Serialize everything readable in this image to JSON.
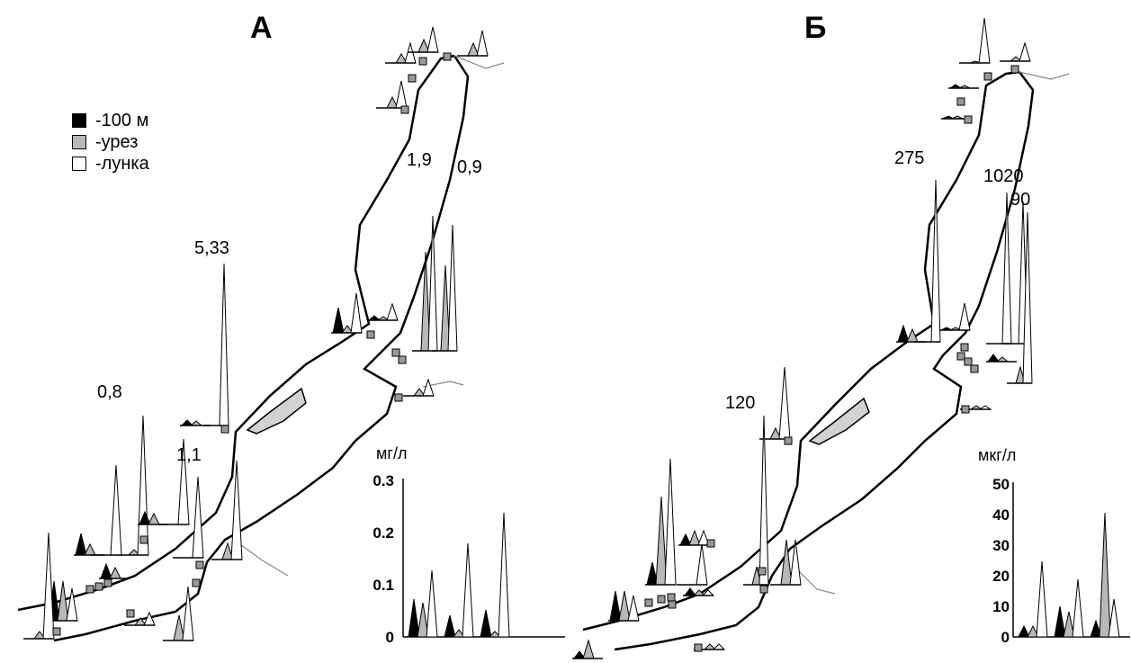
{
  "legend": {
    "items": [
      {
        "label": "-100 м",
        "color": "#000000"
      },
      {
        "label": "-урез",
        "color": "#b8b8b8"
      },
      {
        "label": "-лунка",
        "color": "#ffffff"
      }
    ]
  },
  "panels": [
    {
      "title": "А",
      "annotations": [
        "5,33",
        "0,8",
        "1,1",
        "1,9",
        "0,9"
      ],
      "inset": {
        "unit": "мг/л",
        "ticks": [
          "0",
          "0.1",
          "0.2",
          "0.3"
        ],
        "ymax": 0.3
      }
    },
    {
      "title": "Б",
      "annotations": [
        "275",
        "1020",
        "90",
        "120"
      ],
      "inset": {
        "unit": "мкг/л",
        "ticks": [
          "0",
          "10",
          "20",
          "30",
          "40",
          "50"
        ],
        "ymax": 50
      }
    }
  ],
  "colors": {
    "deep": "#000000",
    "shore": "#b8b8b8",
    "hole": "#ffffff",
    "island": "#d2d2d2",
    "river": "#888888"
  }
}
